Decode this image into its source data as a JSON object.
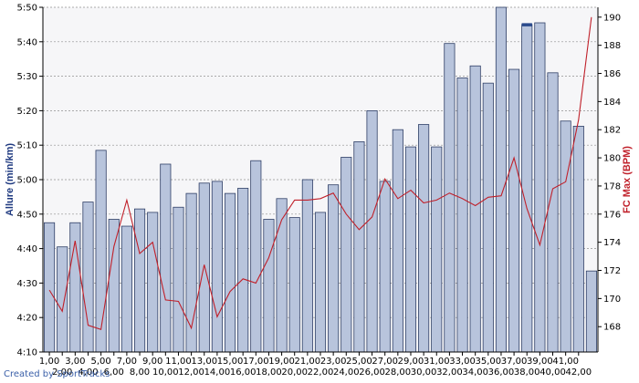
{
  "chart_data": {
    "type": "bar",
    "title": "",
    "xlabel": "",
    "ylabel": "Allure (min/km)",
    "y2label": "FC Max (BPM)",
    "credit": "Created by SportTracks",
    "grid": true,
    "colors": {
      "bar_fill": "#b8c4dc",
      "bar_stroke": "#2f3f66",
      "line": "#c0202a",
      "left_axis": "#1f3a80",
      "right_axis": "#c0202a",
      "grid": "#909090",
      "plot_bg": "#f6f6f8"
    },
    "categories": [
      "1,00",
      "2,00",
      "3,00",
      "4,00",
      "5,00",
      "6,00",
      "7,00",
      "8,00",
      "9,00",
      "10,00",
      "11,00",
      "12,00",
      "13,00",
      "14,00",
      "15,00",
      "16,00",
      "17,00",
      "18,00",
      "19,00",
      "20,00",
      "21,00",
      "22,00",
      "23,00",
      "24,00",
      "25,00",
      "26,00",
      "27,00",
      "28,00",
      "29,00",
      "30,00",
      "31,00",
      "32,00",
      "33,00",
      "34,00",
      "35,00",
      "36,00",
      "37,00",
      "38,00",
      "39,00",
      "40,00",
      "41,00",
      "42,00",
      ""
    ],
    "y_left": {
      "ticks": [
        "4:10",
        "4:20",
        "4:30",
        "4:40",
        "4:50",
        "5:00",
        "5:10",
        "5:20",
        "5:30",
        "5:40",
        "5:50"
      ],
      "min": 250,
      "max": 350
    },
    "y_right": {
      "ticks": [
        "168",
        "170",
        "172",
        "174",
        "176",
        "178",
        "180",
        "182",
        "184",
        "186",
        "188",
        "190"
      ],
      "min": 166.2,
      "max": 190.7
    },
    "series": [
      {
        "name": "Allure (min/km)",
        "axis": "left",
        "kind": "bar",
        "values": [
          287.5,
          280.5,
          287.5,
          293.5,
          308.5,
          288.5,
          286.5,
          291.5,
          290.5,
          304.5,
          292,
          296,
          299,
          299.5,
          296,
          297.5,
          305.5,
          288.5,
          294.5,
          289,
          300,
          290.5,
          298.5,
          306.5,
          311,
          320,
          299.5,
          314.5,
          309.5,
          316,
          309.5,
          339.5,
          329.5,
          333,
          328,
          350,
          332,
          345,
          345.5,
          331,
          317,
          315.5,
          273.5
        ]
      },
      {
        "name": "FC Max (BPM)",
        "axis": "right",
        "kind": "line",
        "values": [
          170.6,
          169.1,
          174.1,
          168.1,
          167.8,
          173.7,
          177,
          173.2,
          174,
          169.9,
          169.8,
          167.9,
          172.4,
          168.7,
          170.5,
          171.4,
          171.1,
          172.9,
          175.6,
          177,
          177,
          177.1,
          177.5,
          176,
          174.9,
          175.8,
          178.5,
          177.1,
          177.7,
          176.8,
          177,
          177.5,
          177.1,
          176.6,
          177.2,
          177.3,
          180,
          176.4,
          173.8,
          177.8,
          178.3,
          182.7,
          190
        ]
      }
    ]
  }
}
